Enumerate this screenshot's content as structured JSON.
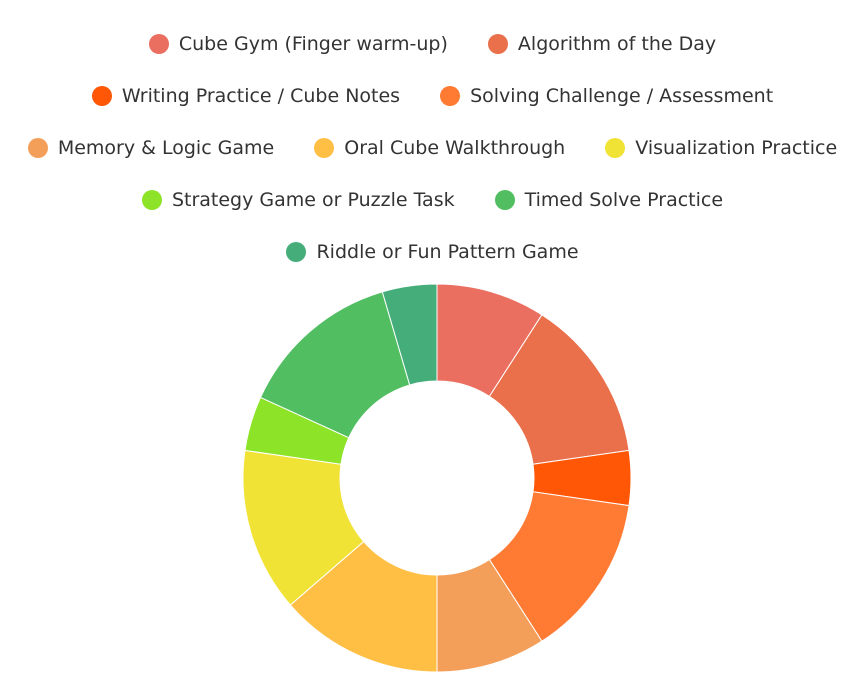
{
  "chart_data": {
    "type": "pie",
    "donut": true,
    "legend_position": "top",
    "categories": [
      "Cube Gym (Finger warm-up)",
      "Algorithm of the Day",
      "Writing Practice / Cube Notes",
      "Solving Challenge / Assessment",
      "Memory & Logic Game",
      "Oral Cube Walkthrough",
      "Visualization Practice",
      "Strategy Game or Puzzle Task",
      "Timed Solve Practice",
      "Riddle or Fun Pattern Game"
    ],
    "values": [
      10,
      15,
      5,
      15,
      10,
      15,
      15,
      5,
      15,
      5
    ],
    "colors": [
      "#ea6f61",
      "#ea6f4b",
      "#ff5706",
      "#ff7b33",
      "#f49f59",
      "#ffbf45",
      "#f0e336",
      "#8de328",
      "#51be61",
      "#44ad79"
    ]
  }
}
